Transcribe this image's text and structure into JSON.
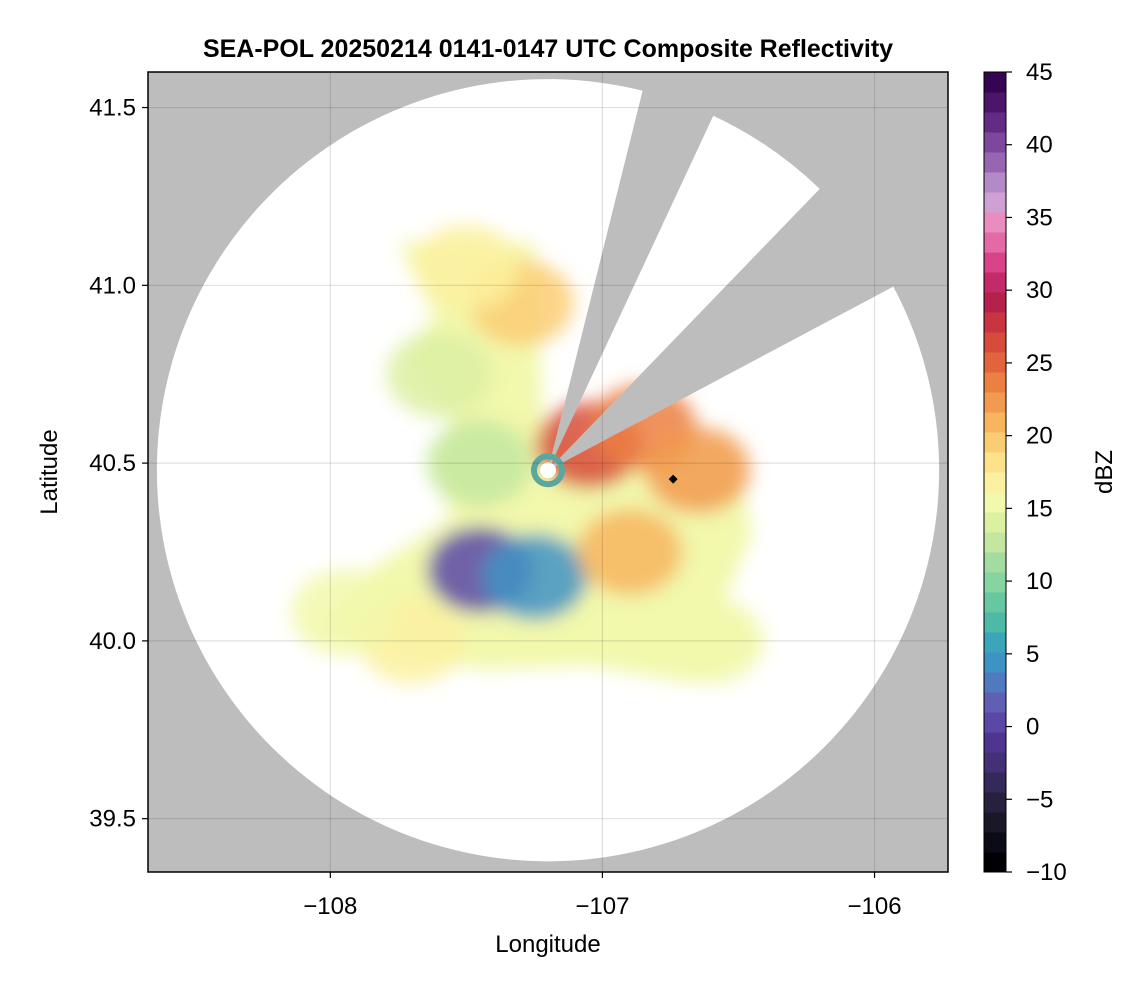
{
  "figure": {
    "title": "SEA-POL 20250214 0141-0147 UTC Composite Reflectivity"
  },
  "map": {
    "xlabel": "Longitude",
    "ylabel": "Latitude",
    "xlim": [
      -108.67,
      -105.73
    ],
    "ylim": [
      39.35,
      41.6
    ],
    "xticks": [
      -108,
      -107,
      -106
    ],
    "xtick_labels": [
      "−108",
      "−107",
      "−106"
    ],
    "yticks": [
      39.5,
      40.0,
      40.5,
      41.0,
      41.5
    ],
    "ytick_labels": [
      "39.5",
      "40.0",
      "40.5",
      "41.0",
      "41.5"
    ],
    "grid": true,
    "background_color": "#bdbdbd",
    "radar_site": [
      -107.2,
      40.48
    ],
    "radar_max_range_deg_lat": 1.1,
    "blocked_sectors_deg_from_north": [
      [
        14,
        25
      ],
      [
        44,
        62
      ]
    ],
    "marker": {
      "lon": -106.74,
      "lat": 40.455,
      "shape": "diamond",
      "color": "#000000"
    }
  },
  "colorbar": {
    "label": "dBZ",
    "vmin": -10,
    "vmax": 45,
    "ticks": [
      -10,
      -5,
      0,
      5,
      10,
      15,
      20,
      25,
      30,
      35,
      40,
      45
    ],
    "tick_labels": [
      "−10",
      "−5",
      "0",
      "5",
      "10",
      "15",
      "20",
      "25",
      "30",
      "35",
      "40",
      "45"
    ],
    "colors": [
      "#000004",
      "#0b0a17",
      "#1a1729",
      "#28213d",
      "#35295a",
      "#433077",
      "#503590",
      "#5b48a6",
      "#5f5fb3",
      "#4f7abf",
      "#3f93c4",
      "#3ba6b9",
      "#4db9a6",
      "#66c7a0",
      "#86d49f",
      "#a3dca0",
      "#c3e79f",
      "#dcf0a2",
      "#f2f8ac",
      "#fbf1a0",
      "#fde28b",
      "#fbcd73",
      "#f7b55e",
      "#f29a4f",
      "#ec7f42",
      "#e2633c",
      "#d74b3b",
      "#c93440",
      "#b5214a",
      "#c42a6a",
      "#d94488",
      "#e46aa6",
      "#e98dbe",
      "#cfa0d2",
      "#b389c8",
      "#9766b3",
      "#7c479c",
      "#632b83",
      "#4b166a",
      "#330552"
    ]
  },
  "chart_data": {
    "type": "heatmap",
    "title": "SEA-POL 20250214 0141-0147 UTC Composite Reflectivity",
    "xlabel": "Longitude",
    "ylabel": "Latitude",
    "xlim": [
      -108.67,
      -105.73
    ],
    "ylim": [
      39.35,
      41.6
    ],
    "colorbar_label": "dBZ",
    "value_range": [
      -10,
      45
    ],
    "echo_regions": [
      {
        "lon": -107.05,
        "lat": 40.55,
        "dBZ": 26
      },
      {
        "lon": -106.85,
        "lat": 40.6,
        "dBZ": 24
      },
      {
        "lon": -106.65,
        "lat": 40.48,
        "dBZ": 22
      },
      {
        "lon": -107.3,
        "lat": 40.95,
        "dBZ": 20
      },
      {
        "lon": -107.5,
        "lat": 41.05,
        "dBZ": 17
      },
      {
        "lon": -107.6,
        "lat": 40.75,
        "dBZ": 14
      },
      {
        "lon": -107.45,
        "lat": 40.2,
        "dBZ": 0
      },
      {
        "lon": -107.25,
        "lat": 40.18,
        "dBZ": 5
      },
      {
        "lon": -107.7,
        "lat": 40.0,
        "dBZ": 17
      },
      {
        "lon": -107.95,
        "lat": 40.08,
        "dBZ": 16
      },
      {
        "lon": -106.9,
        "lat": 40.25,
        "dBZ": 21
      },
      {
        "lon": -106.6,
        "lat": 40.0,
        "dBZ": 16
      },
      {
        "lon": -107.45,
        "lat": 40.5,
        "dBZ": 12
      }
    ]
  }
}
